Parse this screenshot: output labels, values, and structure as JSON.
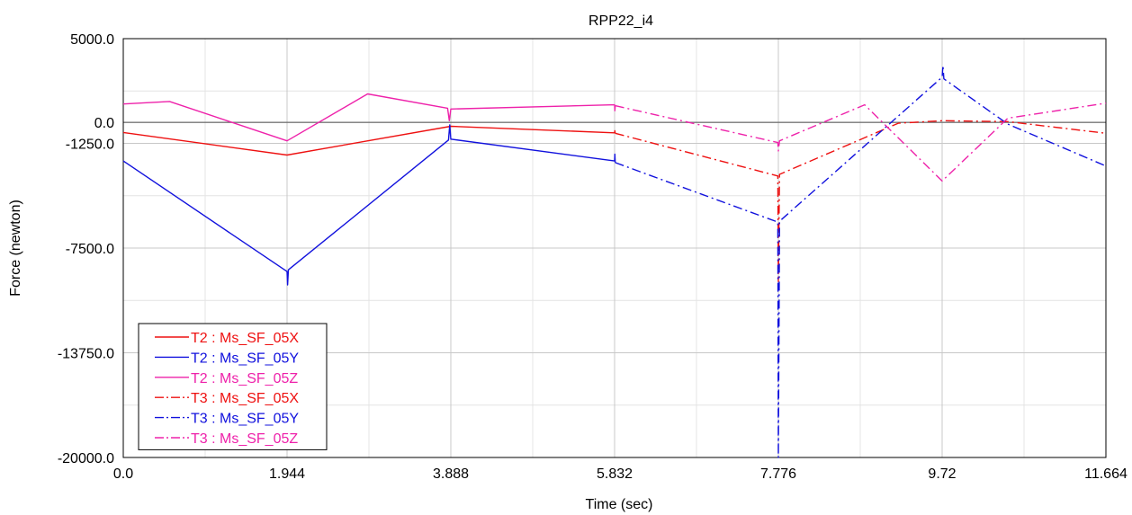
{
  "chart_data": {
    "type": "line",
    "title": "RPP22_i4",
    "xlabel": "Time (sec)",
    "ylabel": "Force (newton)",
    "xlim": [
      0,
      11.664
    ],
    "ylim": [
      -20000,
      5000
    ],
    "xticks": [
      0,
      1.944,
      3.888,
      5.832,
      7.776,
      9.72,
      11.664
    ],
    "xtick_labels": [
      "0.0",
      "1.944",
      "3.888",
      "5.832",
      "7.776",
      "9.72",
      "11.664"
    ],
    "yticks": [
      5000,
      0,
      -1250,
      -7500,
      -13750,
      -20000
    ],
    "ytick_labels": [
      "5000.0",
      "0.0",
      "-1250.0",
      "-7500.0",
      "-13750.0",
      "-20000.0"
    ],
    "grid": true,
    "legend_position": "bottom-left",
    "series": [
      {
        "name": "T2 : Ms_SF_05X",
        "color": "#ee1111",
        "dash": "solid",
        "points": [
          [
            0,
            -600
          ],
          [
            1.944,
            -1950
          ],
          [
            3.888,
            -230
          ],
          [
            5.832,
            -620
          ],
          [
            5.835,
            -500
          ],
          [
            5.84,
            -650
          ]
        ]
      },
      {
        "name": "T2 : Ms_SF_05Y",
        "color": "#1111dd",
        "dash": "solid",
        "points": [
          [
            0,
            -2300
          ],
          [
            1.944,
            -8900
          ],
          [
            1.95,
            -9700
          ],
          [
            1.96,
            -8800
          ],
          [
            3.86,
            -1050
          ],
          [
            3.875,
            -150
          ],
          [
            3.888,
            -1000
          ],
          [
            5.832,
            -2300
          ],
          [
            5.835,
            -1900
          ],
          [
            5.84,
            -2400
          ]
        ]
      },
      {
        "name": "T2 : Ms_SF_05Z",
        "color": "#ee22aa",
        "dash": "solid",
        "points": [
          [
            0,
            1100
          ],
          [
            0.55,
            1250
          ],
          [
            1.944,
            -1100
          ],
          [
            2.9,
            1700
          ],
          [
            3.85,
            850
          ],
          [
            3.87,
            100
          ],
          [
            3.888,
            800
          ],
          [
            5.832,
            1050
          ],
          [
            5.835,
            700
          ],
          [
            5.84,
            1000
          ]
        ]
      },
      {
        "name": "T3 : Ms_SF_05X",
        "color": "#ee1111",
        "dash": "dashdot",
        "points": [
          [
            5.84,
            -650
          ],
          [
            7.77,
            -3200
          ],
          [
            7.776,
            -9500
          ],
          [
            7.79,
            -3100
          ],
          [
            9.2,
            -50
          ],
          [
            9.72,
            100
          ],
          [
            10.5,
            50
          ],
          [
            11.664,
            -650
          ]
        ]
      },
      {
        "name": "T3 : Ms_SF_05Y",
        "color": "#1111dd",
        "dash": "dashdot",
        "points": [
          [
            5.84,
            -2400
          ],
          [
            7.77,
            -5950
          ],
          [
            7.776,
            -20000
          ],
          [
            7.79,
            -5900
          ],
          [
            9.72,
            2700
          ],
          [
            9.73,
            3400
          ],
          [
            9.74,
            2600
          ],
          [
            10.5,
            -100
          ],
          [
            11.664,
            -2600
          ]
        ]
      },
      {
        "name": "T3 : Ms_SF_05Z",
        "color": "#ee22aa",
        "dash": "dashdot",
        "points": [
          [
            5.84,
            1000
          ],
          [
            7.77,
            -1200
          ],
          [
            7.776,
            -1700
          ],
          [
            7.79,
            -1100
          ],
          [
            8.8,
            1050
          ],
          [
            9.72,
            -3500
          ],
          [
            10.5,
            250
          ],
          [
            11.664,
            1150
          ]
        ]
      }
    ]
  }
}
